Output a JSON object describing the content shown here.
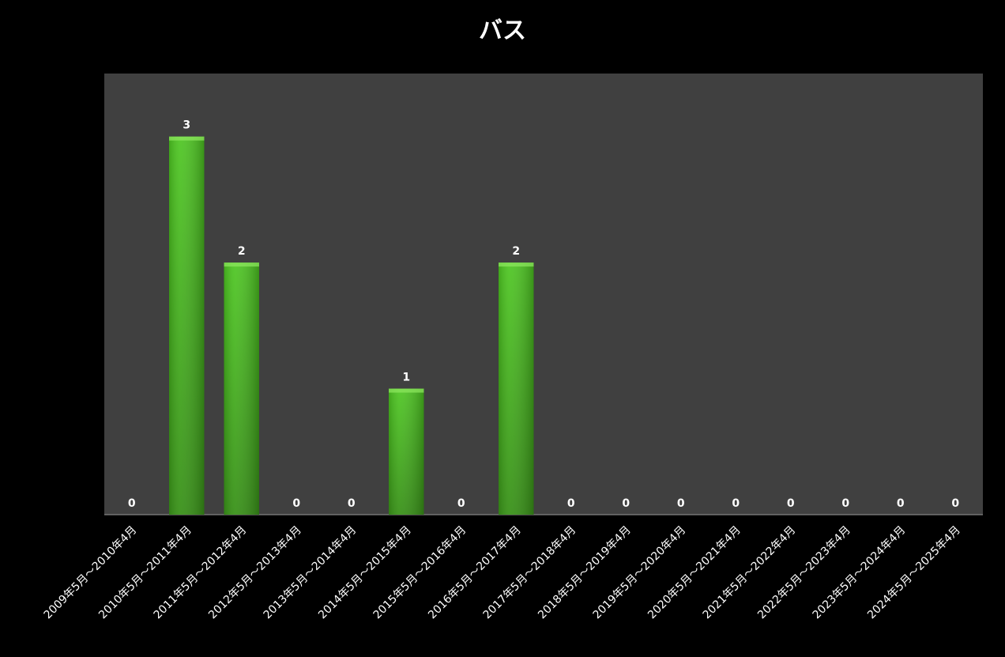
{
  "chart_data": {
    "type": "bar",
    "title": "バス",
    "categories": [
      "2009年5月～2010年4月",
      "2010年5月～2011年4月",
      "2011年5月～2012年4月",
      "2012年5月～2013年4月",
      "2013年5月～2014年4月",
      "2014年5月～2015年4月",
      "2015年5月～2016年4月",
      "2016年5月～2017年4月",
      "2017年5月～2018年4月",
      "2018年5月～2019年4月",
      "2019年5月～2020年4月",
      "2020年5月～2021年4月",
      "2021年5月～2022年4月",
      "2022年5月～2023年4月",
      "2023年5月～2024年4月",
      "2024年5月～2025年4月"
    ],
    "values": [
      0,
      3,
      2,
      0,
      0,
      1,
      0,
      2,
      0,
      0,
      0,
      0,
      0,
      0,
      0,
      0
    ],
    "color": "#4cc520",
    "ylim": [
      0,
      3.5
    ]
  }
}
